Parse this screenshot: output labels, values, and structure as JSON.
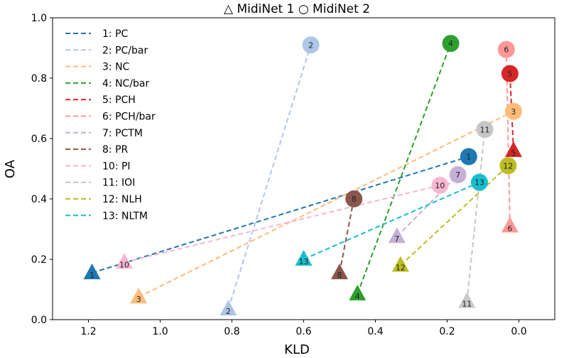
{
  "chart_data": {
    "type": "scatter",
    "title": "△ MidiNet 1 ○ MidiNet 2",
    "xlabel": "KLD",
    "ylabel": "OA",
    "x_inverted": true,
    "xlim": [
      1.3,
      -0.1
    ],
    "ylim": [
      0.0,
      1.0
    ],
    "xticks": [
      1.2,
      1.0,
      0.8,
      0.6,
      0.4,
      0.2,
      0.0
    ],
    "xtick_labels": [
      "1.2",
      "1.0",
      "0.8",
      "0.6",
      "0.4",
      "0.2",
      "0.0"
    ],
    "yticks": [
      0.0,
      0.2,
      0.4,
      0.6,
      0.8,
      1.0
    ],
    "ytick_labels": [
      "0.0",
      "0.2",
      "0.4",
      "0.6",
      "0.8",
      "1.0"
    ],
    "grid": false,
    "legend_position": "top-left",
    "markers": {
      "midinet1": "triangle",
      "midinet2": "circle"
    },
    "series": [
      {
        "id": "1",
        "name": "1: PC",
        "color": "#1f77b4",
        "midinet1": [
          1.19,
          0.155
        ],
        "midinet2": [
          0.14,
          0.54
        ]
      },
      {
        "id": "2",
        "name": "2: PC/bar",
        "color": "#aec7e8",
        "midinet1": [
          0.81,
          0.035
        ],
        "midinet2": [
          0.58,
          0.91
        ]
      },
      {
        "id": "3",
        "name": "3: NC",
        "color": "#ffbb78",
        "midinet1": [
          1.06,
          0.075
        ],
        "midinet2": [
          0.015,
          0.69
        ]
      },
      {
        "id": "4",
        "name": "4: NC/bar",
        "color": "#2ca02c",
        "midinet1": [
          0.45,
          0.085
        ],
        "midinet2": [
          0.19,
          0.915
        ]
      },
      {
        "id": "5",
        "name": "5: PCH",
        "color": "#d62728",
        "midinet1": [
          0.015,
          0.56
        ],
        "midinet2": [
          0.025,
          0.815
        ]
      },
      {
        "id": "6",
        "name": "6: PCH/bar",
        "color": "#ff9896",
        "midinet1": [
          0.025,
          0.31
        ],
        "midinet2": [
          0.035,
          0.895
        ]
      },
      {
        "id": "7",
        "name": "7: PCTM",
        "color": "#c5b0d5",
        "midinet1": [
          0.34,
          0.275
        ],
        "midinet2": [
          0.17,
          0.48
        ]
      },
      {
        "id": "8",
        "name": "8: PR",
        "color": "#8c564b",
        "midinet1": [
          0.5,
          0.155
        ],
        "midinet2": [
          0.46,
          0.4
        ]
      },
      {
        "id": "10",
        "name": "10: PI",
        "color": "#f7b6d2",
        "midinet1": [
          1.1,
          0.19
        ],
        "midinet2": [
          0.22,
          0.445
        ]
      },
      {
        "id": "11",
        "name": "11: IOI",
        "color": "#c7c7c7",
        "midinet1": [
          0.145,
          0.06
        ],
        "midinet2": [
          0.095,
          0.63
        ]
      },
      {
        "id": "12",
        "name": "12: NLH",
        "color": "#bcbd22",
        "midinet1": [
          0.33,
          0.18
        ],
        "midinet2": [
          0.03,
          0.51
        ]
      },
      {
        "id": "13",
        "name": "13: NLTM",
        "color": "#17becf",
        "midinet1": [
          0.6,
          0.2
        ],
        "midinet2": [
          0.11,
          0.455
        ]
      }
    ]
  }
}
